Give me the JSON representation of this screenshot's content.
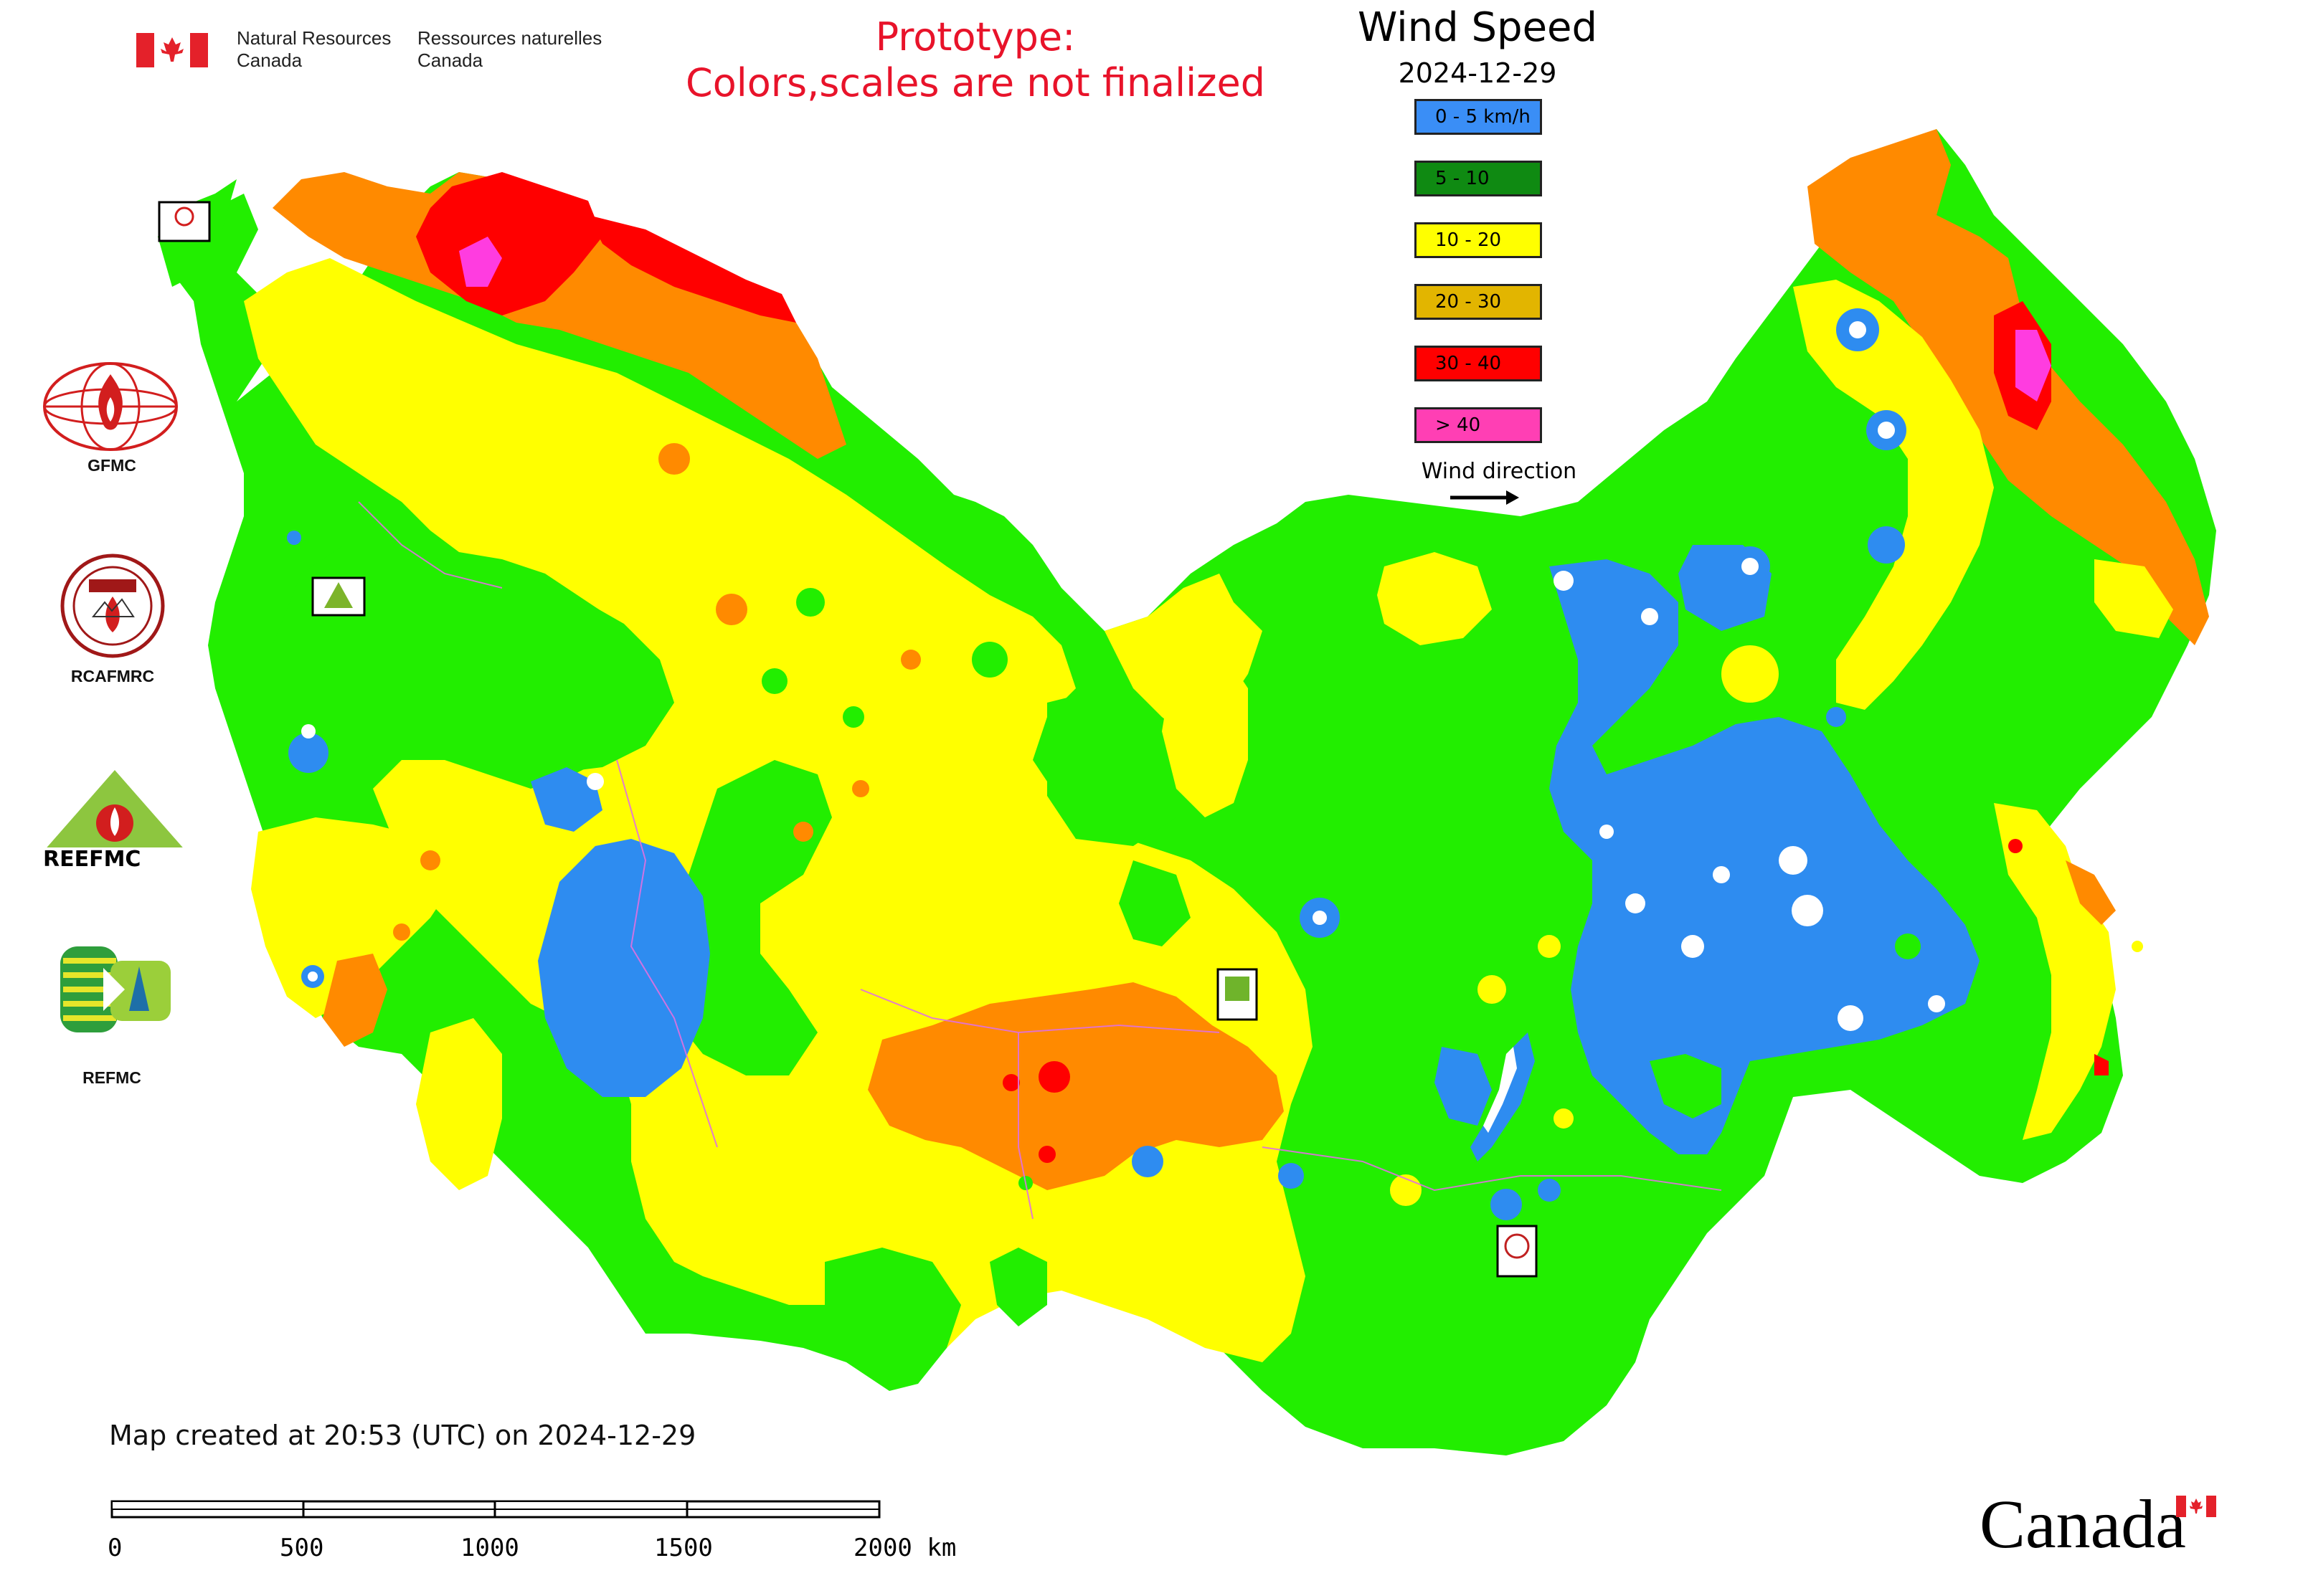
{
  "header": {
    "agency_en": "Natural Resources\nCanada",
    "agency_en_line1": "Natural Resources",
    "agency_en_line2": "Canada",
    "agency_fr_line1": "Ressources naturelles",
    "agency_fr_line2": "Canada",
    "prototype_line1": "Prototype:",
    "prototype_line2": "Colors,scales are not finalized"
  },
  "legend": {
    "title": "Wind Speed",
    "date": "2024-12-29",
    "items": [
      {
        "label": "0 - 5 km/h",
        "color": "#3a8ef6"
      },
      {
        "label": "5 - 10",
        "color": "#0f8a12"
      },
      {
        "label": "10 - 20",
        "color": "#ffff00"
      },
      {
        "label": "20 - 30",
        "color": "#e2b500"
      },
      {
        "label": "30 - 40",
        "color": "#ff0000"
      },
      {
        "label": "> 40",
        "color": "#ff3fb4"
      }
    ],
    "wind_direction_label": "Wind direction"
  },
  "map_colors": {
    "calm": "#2e8cf0",
    "light": "#22ee00",
    "moderate": "#ffff00",
    "fresh": "#ff8a00",
    "strong": "#ff0000",
    "gale": "#ff3ce0",
    "border": "#e070e0"
  },
  "logos": [
    {
      "label": "GFMC"
    },
    {
      "label": "RCAFMRC"
    },
    {
      "label": "REEFMC",
      "text": "REEFMC"
    },
    {
      "label": "REFMC"
    }
  ],
  "footer": {
    "created": "Map created at 20:53 (UTC) on 2024-12-29",
    "scale_ticks": [
      "0",
      "500",
      "1000",
      "1500",
      "2000 km"
    ],
    "wordmark": "Canada"
  }
}
